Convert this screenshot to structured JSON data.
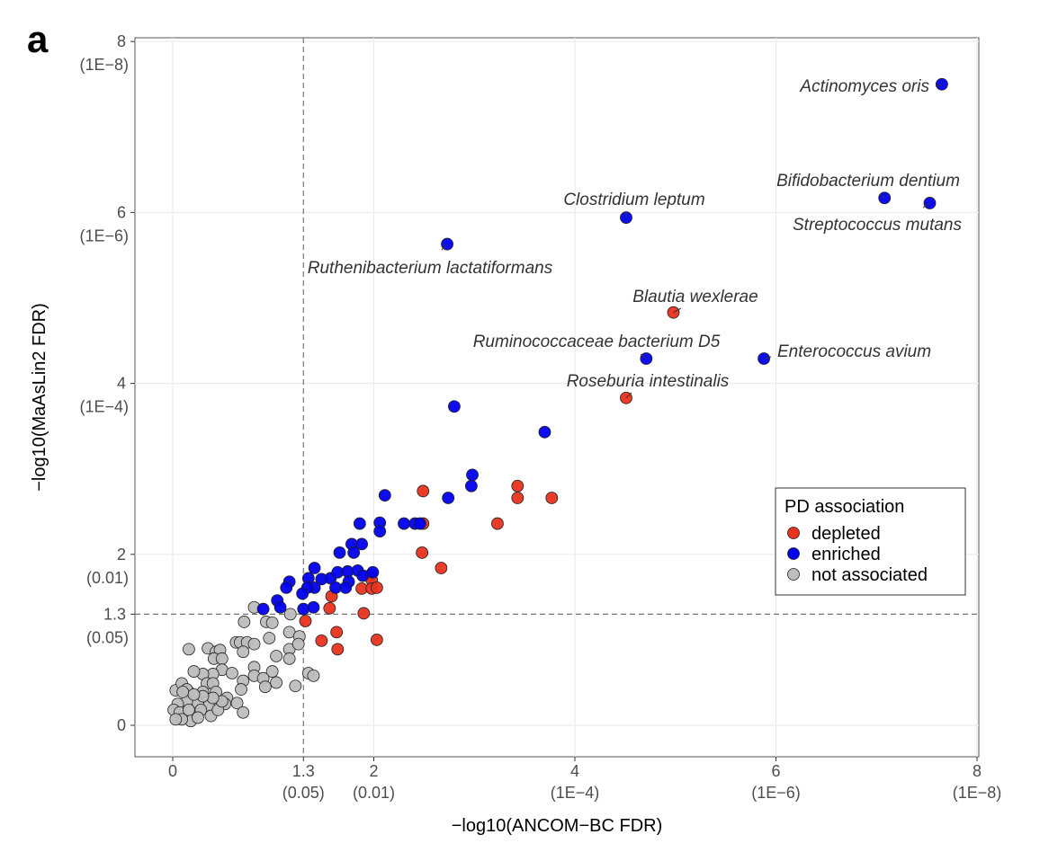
{
  "panel_label": "a",
  "chart_data": {
    "type": "scatter",
    "xlabel": "−log10(ANCOM−BC FDR)",
    "ylabel": "−log10(MaAsLin2 FDR)",
    "xlim": [
      -0.4,
      8.05
    ],
    "ylim": [
      -0.35,
      8.05
    ],
    "grid": true,
    "threshold_lines": {
      "x": 1.3,
      "y": 1.3,
      "style": "dashed"
    },
    "x_ticks": [
      {
        "value": 0,
        "label": "0",
        "sub": ""
      },
      {
        "value": 1.3,
        "label": "1.3",
        "sub": "(0.05)"
      },
      {
        "value": 2,
        "label": "2",
        "sub": "(0.01)"
      },
      {
        "value": 4,
        "label": "4",
        "sub": "(1E−4)"
      },
      {
        "value": 6,
        "label": "6",
        "sub": "(1E−6)"
      },
      {
        "value": 8,
        "label": "8",
        "sub": "(1E−8)"
      }
    ],
    "y_ticks": [
      {
        "value": 0,
        "label": "0",
        "sub": ""
      },
      {
        "value": 1.3,
        "label": "1.3",
        "sub": "(0.05)"
      },
      {
        "value": 2,
        "label": "2",
        "sub": "(0.01)"
      },
      {
        "value": 4,
        "label": "4",
        "sub": "(1E−4)"
      },
      {
        "value": 6,
        "label": "6",
        "sub": "(1E−6)"
      },
      {
        "value": 8,
        "label": "8",
        "sub": "(1E−8)"
      }
    ],
    "legend": {
      "title": "PD association",
      "placement": "right",
      "entries": [
        {
          "label": "depleted",
          "color": "#e8321e"
        },
        {
          "label": "enriched",
          "color": "#0000ee"
        },
        {
          "label": "not associated",
          "color": "#bdbdbd"
        }
      ]
    },
    "series": [
      {
        "name": "enriched",
        "color": "#0000ee",
        "points": [
          [
            7.65,
            7.5
          ],
          [
            7.08,
            6.17
          ],
          [
            7.53,
            6.11
          ],
          [
            4.51,
            5.94
          ],
          [
            2.73,
            5.63
          ],
          [
            4.71,
            4.29
          ],
          [
            5.88,
            4.29
          ],
          [
            2.8,
            3.73
          ],
          [
            3.7,
            3.43
          ],
          [
            2.98,
            2.93
          ],
          [
            2.97,
            2.8
          ],
          [
            2.74,
            2.66
          ],
          [
            2.11,
            2.69
          ],
          [
            1.86,
            2.36
          ],
          [
            2.06,
            2.37
          ],
          [
            2.06,
            2.27
          ],
          [
            2.3,
            2.36
          ],
          [
            2.41,
            2.36
          ],
          [
            2.46,
            2.36
          ],
          [
            1.78,
            2.12
          ],
          [
            1.88,
            2.12
          ],
          [
            1.8,
            2.02
          ],
          [
            1.66,
            2.02
          ],
          [
            1.41,
            1.84
          ],
          [
            1.35,
            1.72
          ],
          [
            1.48,
            1.71
          ],
          [
            1.57,
            1.72
          ],
          [
            1.64,
            1.79
          ],
          [
            1.74,
            1.8
          ],
          [
            1.84,
            1.81
          ],
          [
            1.89,
            1.75
          ],
          [
            1.99,
            1.79
          ],
          [
            1.75,
            1.68
          ],
          [
            1.62,
            1.61
          ],
          [
            1.72,
            1.61
          ],
          [
            1.41,
            1.61
          ],
          [
            1.34,
            1.61
          ],
          [
            1.29,
            1.54
          ],
          [
            1.16,
            1.68
          ],
          [
            1.13,
            1.61
          ],
          [
            1.04,
            1.46
          ],
          [
            1.07,
            1.38
          ],
          [
            0.9,
            1.36
          ],
          [
            1.3,
            1.36
          ],
          [
            1.4,
            1.38
          ]
        ]
      },
      {
        "name": "depleted",
        "color": "#e8321e",
        "points": [
          [
            4.98,
            4.83
          ],
          [
            4.51,
            3.83
          ],
          [
            2.49,
            2.74
          ],
          [
            3.43,
            2.8
          ],
          [
            3.43,
            2.66
          ],
          [
            3.77,
            2.66
          ],
          [
            3.23,
            2.36
          ],
          [
            2.49,
            2.36
          ],
          [
            2.48,
            2.02
          ],
          [
            2.67,
            1.84
          ],
          [
            1.97,
            1.76
          ],
          [
            1.98,
            1.7
          ],
          [
            1.88,
            1.6
          ],
          [
            1.98,
            1.6
          ],
          [
            2.03,
            1.61
          ],
          [
            1.58,
            1.51
          ],
          [
            1.56,
            1.37
          ],
          [
            1.9,
            1.31
          ],
          [
            1.32,
            1.22
          ],
          [
            1.63,
            1.09
          ],
          [
            1.48,
            0.99
          ],
          [
            1.64,
            0.89
          ],
          [
            2.03,
            1.0
          ]
        ]
      },
      {
        "name": "not associated",
        "color": "#bdbdbd",
        "points": [
          [
            0.81,
            1.38
          ],
          [
            1.17,
            1.3
          ],
          [
            0.71,
            1.21
          ],
          [
            0.93,
            1.21
          ],
          [
            0.99,
            1.2
          ],
          [
            0.96,
            1.02
          ],
          [
            1.16,
            1.09
          ],
          [
            1.26,
            1.04
          ],
          [
            1.16,
            0.89
          ],
          [
            1.25,
            0.95
          ],
          [
            1.03,
            0.81
          ],
          [
            1.16,
            0.78
          ],
          [
            0.16,
            0.89
          ],
          [
            0.35,
            0.9
          ],
          [
            0.43,
            0.86
          ],
          [
            0.47,
            0.88
          ],
          [
            0.41,
            0.78
          ],
          [
            0.49,
            0.78
          ],
          [
            0.63,
            0.97
          ],
          [
            0.67,
            0.97
          ],
          [
            0.74,
            0.97
          ],
          [
            0.81,
            0.95
          ],
          [
            0.7,
            0.86
          ],
          [
            0.81,
            0.68
          ],
          [
            0.99,
            0.63
          ],
          [
            0.81,
            0.58
          ],
          [
            0.9,
            0.55
          ],
          [
            1.03,
            0.5
          ],
          [
            0.7,
            0.52
          ],
          [
            0.68,
            0.42
          ],
          [
            0.92,
            0.45
          ],
          [
            1.22,
            0.46
          ],
          [
            1.35,
            0.61
          ],
          [
            1.4,
            0.58
          ],
          [
            0.49,
            0.65
          ],
          [
            0.59,
            0.61
          ],
          [
            0.4,
            0.6
          ],
          [
            0.3,
            0.6
          ],
          [
            0.21,
            0.63
          ],
          [
            0.34,
            0.49
          ],
          [
            0.4,
            0.49
          ],
          [
            0.43,
            0.39
          ],
          [
            0.3,
            0.39
          ],
          [
            0.16,
            0.39
          ],
          [
            0.03,
            0.41
          ],
          [
            0.09,
            0.49
          ],
          [
            0.14,
            0.42
          ],
          [
            0.54,
            0.32
          ],
          [
            0.64,
            0.26
          ],
          [
            0.52,
            0.25
          ],
          [
            0.7,
            0.15
          ],
          [
            0.36,
            0.23
          ],
          [
            0.25,
            0.26
          ],
          [
            0.14,
            0.28
          ],
          [
            0.05,
            0.25
          ],
          [
            0.01,
            0.18
          ],
          [
            0.07,
            0.15
          ],
          [
            0.16,
            0.18
          ],
          [
            0.28,
            0.18
          ],
          [
            0.38,
            0.11
          ],
          [
            0.18,
            0.05
          ],
          [
            0.09,
            0.07
          ],
          [
            0.03,
            0.07
          ],
          [
            0.25,
            0.09
          ],
          [
            0.45,
            0.18
          ],
          [
            0.49,
            0.28
          ],
          [
            0.4,
            0.32
          ],
          [
            0.3,
            0.34
          ],
          [
            0.21,
            0.36
          ],
          [
            0.1,
            0.39
          ]
        ]
      }
    ],
    "annotations": [
      {
        "text": "Actinomyces oris",
        "x": 7.65,
        "y": 7.5
      },
      {
        "text": "Bifidobacterium dentium",
        "x": 7.08,
        "y": 6.17
      },
      {
        "text": "Streptococcus mutans",
        "x": 7.53,
        "y": 6.11
      },
      {
        "text": "Clostridium leptum",
        "x": 4.51,
        "y": 5.94
      },
      {
        "text": "Ruthenibacterium lactatiformans",
        "x": 2.73,
        "y": 5.63
      },
      {
        "text": "Blautia wexlerae",
        "x": 4.98,
        "y": 4.83
      },
      {
        "text": "Ruminococcaceae bacterium D5",
        "x": 4.71,
        "y": 4.29
      },
      {
        "text": "Enterococcus avium",
        "x": 5.88,
        "y": 4.29
      },
      {
        "text": "Roseburia intestinalis",
        "x": 4.51,
        "y": 3.83
      }
    ]
  }
}
